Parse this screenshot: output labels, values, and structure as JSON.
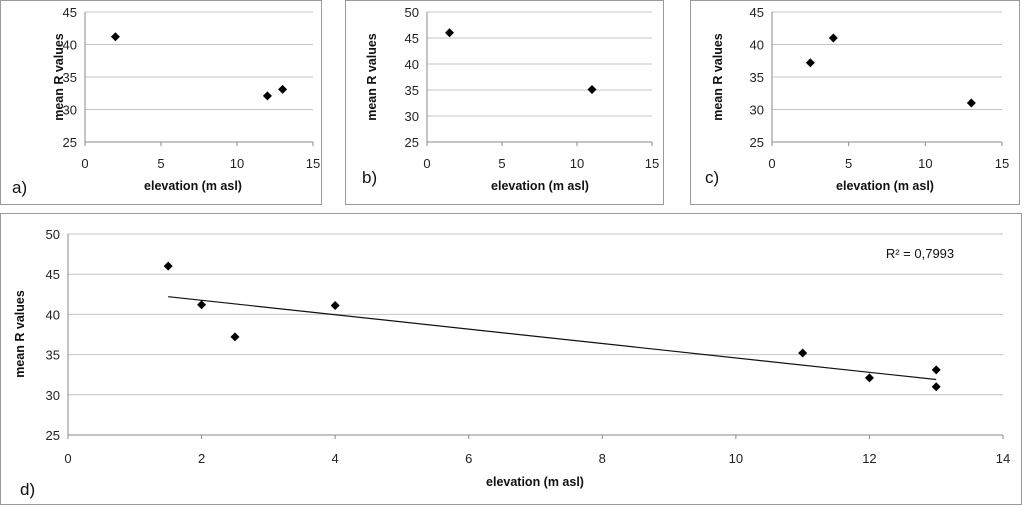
{
  "chart_data": [
    {
      "id": "a",
      "type": "scatter",
      "panel_label": "a)",
      "xlabel": "elevation (m asl)",
      "ylabel": "mean R values",
      "xlim": [
        0,
        15
      ],
      "ylim": [
        25,
        45
      ],
      "xticks": [
        "0",
        "5",
        "10",
        "15"
      ],
      "yticks": [
        "25",
        "30",
        "35",
        "40",
        "45"
      ],
      "grid": "horizontal",
      "points": [
        {
          "x": 2,
          "y": 41.2
        },
        {
          "x": 12,
          "y": 32.1
        },
        {
          "x": 13,
          "y": 33.1
        }
      ]
    },
    {
      "id": "b",
      "type": "scatter",
      "panel_label": "b)",
      "xlabel": "elevation (m asl)",
      "ylabel": "mean R values",
      "xlim": [
        0,
        15
      ],
      "ylim": [
        25,
        50
      ],
      "xticks": [
        "0",
        "5",
        "10",
        "15"
      ],
      "yticks": [
        "25",
        "30",
        "35",
        "40",
        "45",
        "50"
      ],
      "grid": "horizontal",
      "points": [
        {
          "x": 1.5,
          "y": 46
        },
        {
          "x": 11,
          "y": 35.1
        }
      ]
    },
    {
      "id": "c",
      "type": "scatter",
      "panel_label": "c)",
      "xlabel": "elevation (m asl)",
      "ylabel": "mean R values",
      "xlim": [
        0,
        15
      ],
      "ylim": [
        25,
        45
      ],
      "xticks": [
        "0",
        "5",
        "10",
        "15"
      ],
      "yticks": [
        "25",
        "30",
        "35",
        "40",
        "45"
      ],
      "grid": "horizontal",
      "points": [
        {
          "x": 2.5,
          "y": 37.2
        },
        {
          "x": 4,
          "y": 41
        },
        {
          "x": 13,
          "y": 31
        }
      ]
    },
    {
      "id": "d",
      "type": "scatter",
      "panel_label": "d)",
      "xlabel": "elevation (m asl)",
      "ylabel": "mean R values",
      "xlim": [
        0,
        14
      ],
      "ylim": [
        25,
        50
      ],
      "xticks": [
        "0",
        "2",
        "4",
        "6",
        "8",
        "10",
        "12",
        "14"
      ],
      "yticks": [
        "25",
        "30",
        "35",
        "40",
        "45",
        "50"
      ],
      "grid": "horizontal",
      "annotation": "R² = 0,7993",
      "trendline": {
        "x1": 1.5,
        "y1": 42.2,
        "x2": 13,
        "y2": 31.9
      },
      "points": [
        {
          "x": 1.5,
          "y": 46
        },
        {
          "x": 2,
          "y": 41.2
        },
        {
          "x": 2.5,
          "y": 37.2
        },
        {
          "x": 4,
          "y": 41.1
        },
        {
          "x": 11,
          "y": 35.2
        },
        {
          "x": 12,
          "y": 32.1
        },
        {
          "x": 13,
          "y": 33.1
        },
        {
          "x": 13,
          "y": 31
        }
      ]
    }
  ]
}
